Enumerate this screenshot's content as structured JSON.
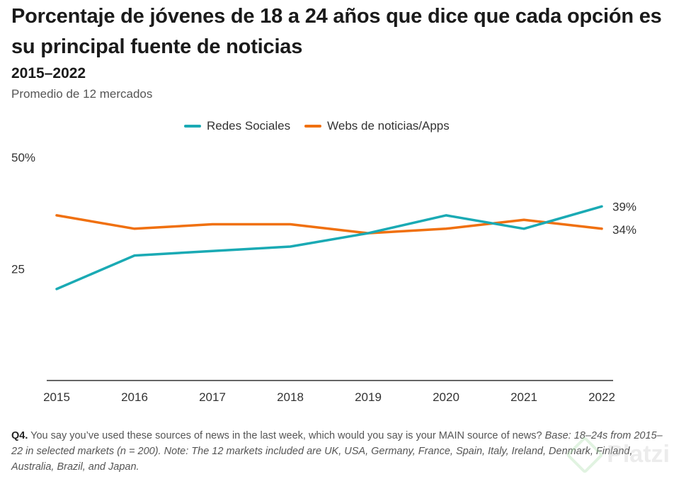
{
  "title": "Porcentaje de jóvenes de 18 a 24 años que dice que cada opción es su principal fuente de noticias",
  "subtitle": "2015–2022",
  "note": "Promedio de 12 mercados",
  "colors": {
    "series_social": "#1aaab4",
    "series_web": "#f0700f",
    "axis": "#333333",
    "text": "#333333"
  },
  "legend": [
    "Redes Sociales",
    "Webs de noticias/Apps"
  ],
  "chart_data": {
    "type": "line",
    "title": "Porcentaje de jóvenes de 18 a 24 años que dice que cada opción es su principal fuente de noticias",
    "x": [
      2015,
      2016,
      2017,
      2018,
      2019,
      2020,
      2021,
      2022
    ],
    "x_tick_labels": [
      "2015",
      "2016",
      "2017",
      "2018",
      "2019",
      "2020",
      "2021",
      "2022"
    ],
    "ylim": [
      0,
      50
    ],
    "y_ticks": [
      25,
      50
    ],
    "y_tick_labels": [
      "25",
      "50%"
    ],
    "xlabel": "",
    "ylabel": "",
    "series": [
      {
        "name": "Redes Sociales",
        "values": [
          20.5,
          28,
          29,
          30,
          33,
          37,
          34,
          39
        ],
        "end_label": "39%"
      },
      {
        "name": "Webs de noticias/Apps",
        "values": [
          37,
          34,
          35,
          35,
          33,
          34,
          36,
          34
        ],
        "end_label": "34%"
      }
    ]
  },
  "footer": {
    "q_label": "Q4.",
    "question": " You say you’ve used these sources of news in the last week, which would you say is your MAIN source of news? ",
    "base_note": "Base: 18–24s from 2015–22 in selected markets (n = 200). Note: The 12 markets included are UK, USA, Germany, France, Spain, Italy, Ireland, Denmark, Finland, Australia, Brazil, and Japan."
  },
  "watermark": "Platzi"
}
